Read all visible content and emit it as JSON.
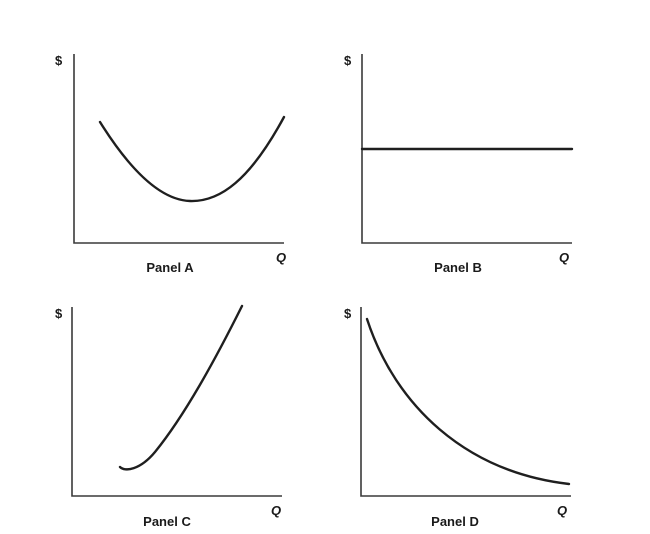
{
  "panels": [
    {
      "id": "a",
      "label": "Panel A",
      "y_axis_label": "$",
      "x_axis_label": "Q",
      "curve_shape": "u-shaped"
    },
    {
      "id": "b",
      "label": "Panel B",
      "y_axis_label": "$",
      "x_axis_label": "Q",
      "curve_shape": "horizontal-line"
    },
    {
      "id": "c",
      "label": "Panel C",
      "y_axis_label": "$",
      "x_axis_label": "Q",
      "curve_shape": "upward-sloping"
    },
    {
      "id": "d",
      "label": "Panel D",
      "y_axis_label": "$",
      "x_axis_label": "Q",
      "curve_shape": "downward-sloping-convex"
    }
  ],
  "colors": {
    "curve": "#1f1f1f",
    "axis": "#3a3a3a",
    "text": "#1a1a1a",
    "background": "#ffffff"
  }
}
